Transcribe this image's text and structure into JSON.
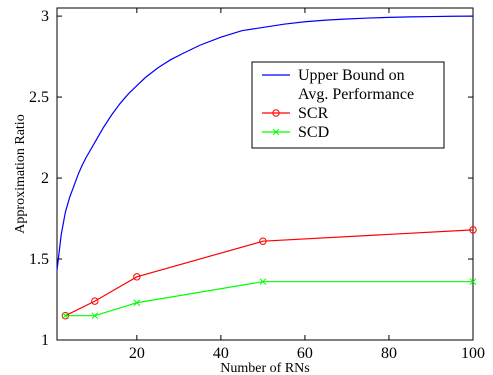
{
  "chart_data": {
    "type": "line",
    "title": "",
    "xlabel": "Number of RNs",
    "ylabel": "Approximation Ratio",
    "xlim": [
      1,
      100
    ],
    "ylim": [
      1,
      3.05
    ],
    "xticks": [
      20,
      40,
      60,
      80,
      100
    ],
    "yticks": [
      1,
      1.5,
      2,
      2.5,
      3
    ],
    "xtick_labels": [
      "20",
      "40",
      "60",
      "80",
      "100"
    ],
    "ytick_labels": [
      "1",
      "1.5",
      "2",
      "2.5",
      "3"
    ],
    "grid": false,
    "legend_position": "right",
    "series": [
      {
        "name": "Upper Bound on Avg. Performance",
        "legend_lines": [
          "Upper Bound on",
          "Avg. Performance"
        ],
        "color": "#0000ff",
        "marker": "none",
        "x": [
          1,
          2,
          3,
          4,
          5,
          6,
          7,
          8,
          10,
          12,
          14,
          16,
          18,
          20,
          22,
          25,
          28,
          31,
          35,
          40,
          45,
          50,
          55,
          60,
          65,
          70,
          75,
          80,
          85,
          90,
          95,
          100
        ],
        "y": [
          1.43,
          1.65,
          1.79,
          1.88,
          1.95,
          2.02,
          2.08,
          2.13,
          2.22,
          2.31,
          2.39,
          2.46,
          2.52,
          2.57,
          2.62,
          2.68,
          2.73,
          2.77,
          2.82,
          2.87,
          2.91,
          2.93,
          2.95,
          2.965,
          2.975,
          2.982,
          2.988,
          2.992,
          2.995,
          2.997,
          2.999,
          3.0
        ]
      },
      {
        "name": "SCR",
        "legend_lines": [
          "SCR"
        ],
        "color": "#ff0000",
        "marker": "circle",
        "x": [
          3,
          10,
          20,
          50,
          100
        ],
        "y": [
          1.15,
          1.24,
          1.39,
          1.61,
          1.68
        ]
      },
      {
        "name": "SCD",
        "legend_lines": [
          "SCD"
        ],
        "color": "#00ff00",
        "marker": "x",
        "x": [
          3,
          10,
          20,
          50,
          100
        ],
        "y": [
          1.15,
          1.15,
          1.23,
          1.36,
          1.36
        ]
      }
    ]
  }
}
